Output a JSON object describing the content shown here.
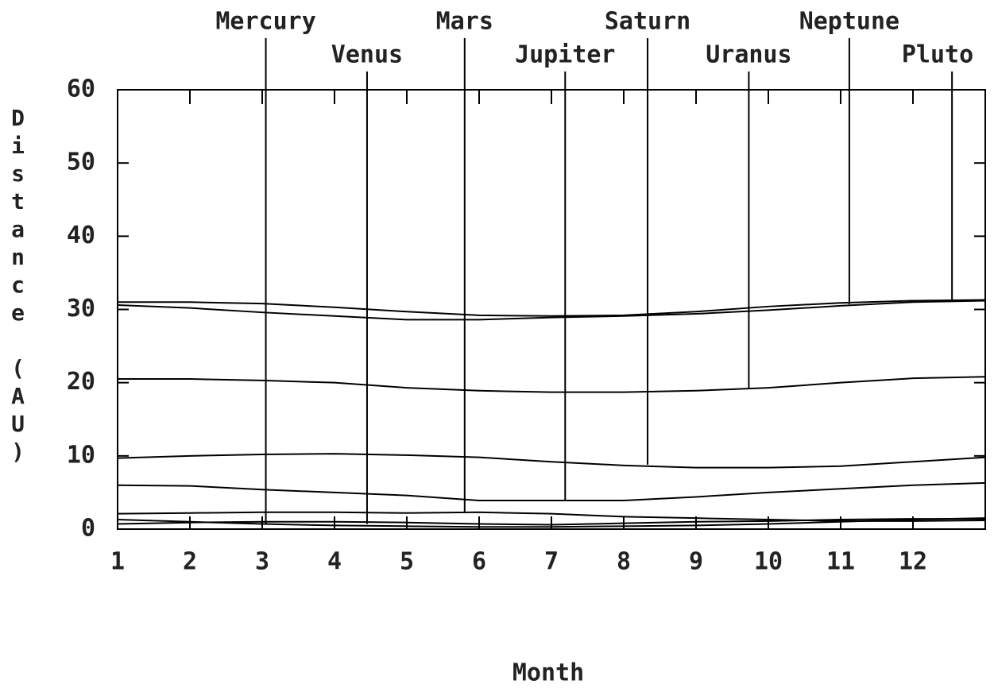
{
  "chart_data": {
    "type": "line",
    "x_label": "Month",
    "y_label": "Distance (AU)",
    "x": [
      1,
      2,
      3,
      4,
      5,
      6,
      7,
      8,
      9,
      10,
      11,
      12,
      13
    ],
    "xlim": [
      1,
      13
    ],
    "xticks": [
      1,
      2,
      3,
      4,
      5,
      6,
      7,
      8,
      9,
      10,
      11,
      12
    ],
    "ylim": [
      0,
      60
    ],
    "yticks": [
      0,
      10,
      20,
      30,
      40,
      50,
      60
    ],
    "color": "#000000",
    "grid": false,
    "series": [
      {
        "values": [
          31.0,
          31.0,
          30.8,
          30.3,
          29.7,
          29.2,
          29.1,
          29.2,
          29.7,
          30.4,
          30.9,
          31.2,
          31.3
        ]
      },
      {
        "values": [
          30.6,
          30.2,
          29.6,
          29.1,
          28.6,
          28.6,
          28.9,
          29.1,
          29.4,
          29.9,
          30.5,
          31.0,
          31.2
        ]
      },
      {
        "values": [
          20.5,
          20.5,
          20.3,
          20.0,
          19.3,
          18.9,
          18.7,
          18.7,
          18.9,
          19.3,
          20.0,
          20.6,
          20.8
        ]
      },
      {
        "values": [
          9.7,
          10.0,
          10.2,
          10.3,
          10.1,
          9.8,
          9.2,
          8.7,
          8.4,
          8.4,
          8.6,
          9.2,
          9.8
        ]
      },
      {
        "values": [
          6.0,
          5.9,
          5.4,
          5.0,
          4.6,
          3.9,
          3.9,
          3.9,
          4.4,
          5.0,
          5.5,
          6.0,
          6.3
        ]
      },
      {
        "values": [
          2.1,
          2.2,
          2.3,
          2.3,
          2.2,
          2.3,
          2.1,
          1.7,
          1.5,
          1.3,
          1.1,
          1.1,
          1.2
        ]
      },
      {
        "values": [
          1.3,
          1.0,
          0.7,
          0.5,
          0.4,
          0.3,
          0.3,
          0.4,
          0.5,
          0.7,
          1.0,
          1.3,
          1.5
        ]
      },
      {
        "values": [
          0.7,
          0.9,
          1.0,
          1.0,
          0.9,
          0.7,
          0.6,
          0.8,
          1.0,
          1.1,
          1.3,
          1.4,
          1.4
        ]
      }
    ],
    "annotations": [
      {
        "text": "Mercury",
        "x": 3.05,
        "y": 0.7
      },
      {
        "text": "Venus",
        "x": 4.45,
        "y": 0.7
      },
      {
        "text": "Mars",
        "x": 5.8,
        "y": 2.3
      },
      {
        "text": "Jupiter",
        "x": 7.19,
        "y": 3.9
      },
      {
        "text": "Saturn",
        "x": 8.33,
        "y": 8.8
      },
      {
        "text": "Uranus",
        "x": 9.73,
        "y": 19.3
      },
      {
        "text": "Neptune",
        "x": 11.12,
        "y": 30.7
      },
      {
        "text": "Pluto",
        "x": 12.54,
        "y": 31.3
      }
    ]
  }
}
